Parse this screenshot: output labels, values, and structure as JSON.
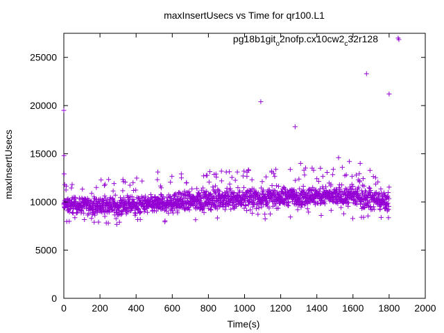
{
  "chart_data": {
    "type": "scatter",
    "title": "maxInsertUsecs vs Time for qr100.L1",
    "xlabel": "Time(s)",
    "ylabel": "maxInsertUsecs",
    "xlim": [
      0,
      2000
    ],
    "ylim": [
      0,
      27500
    ],
    "xticks": [
      "0",
      "200",
      "400",
      "600",
      "800",
      "1000",
      "1200",
      "1400",
      "1600",
      "1800",
      "2000"
    ],
    "yticks": [
      "0",
      "5000",
      "10000",
      "15000",
      "20000",
      "25000"
    ],
    "legend_position": "top-right",
    "legend": {
      "base": "pg18b1git",
      "sub1": "o",
      "mid": "2nofp.cx10cw2",
      "sub2": "c",
      "tail": "32r128"
    },
    "marker": "+",
    "grid": false,
    "series": [
      {
        "name": "pg18b1git_o2nofp.cx10cw2_c32r128",
        "color": "#9400d3",
        "x_range": [
          0,
          1800
        ],
        "sample_interval_s": 1,
        "typical_band": [
          {
            "x": 0,
            "y_low": 8500,
            "y_high": 10800
          },
          {
            "x": 400,
            "y_low": 8200,
            "y_high": 11000
          },
          {
            "x": 800,
            "y_low": 8700,
            "y_high": 11800
          },
          {
            "x": 1200,
            "y_low": 9000,
            "y_high": 12000
          },
          {
            "x": 1600,
            "y_low": 9000,
            "y_high": 12200
          },
          {
            "x": 1800,
            "y_low": 8500,
            "y_high": 11500
          }
        ],
        "outliers": [
          {
            "x": 0,
            "y": 19500
          },
          {
            "x": 1,
            "y": 14800
          },
          {
            "x": 2,
            "y": 12900
          },
          {
            "x": 5,
            "y": 11800
          },
          {
            "x": 180,
            "y": 11500
          },
          {
            "x": 330,
            "y": 12100
          },
          {
            "x": 520,
            "y": 13100
          },
          {
            "x": 650,
            "y": 12900
          },
          {
            "x": 960,
            "y": 13100
          },
          {
            "x": 1090,
            "y": 20400
          },
          {
            "x": 1150,
            "y": 13200
          },
          {
            "x": 1280,
            "y": 17800
          },
          {
            "x": 1310,
            "y": 14000
          },
          {
            "x": 1420,
            "y": 13500
          },
          {
            "x": 1520,
            "y": 14600
          },
          {
            "x": 1580,
            "y": 14200
          },
          {
            "x": 1640,
            "y": 14000
          },
          {
            "x": 1675,
            "y": 23300
          },
          {
            "x": 1800,
            "y": 21200
          },
          {
            "x": 1850,
            "y": 27000
          }
        ]
      }
    ]
  }
}
